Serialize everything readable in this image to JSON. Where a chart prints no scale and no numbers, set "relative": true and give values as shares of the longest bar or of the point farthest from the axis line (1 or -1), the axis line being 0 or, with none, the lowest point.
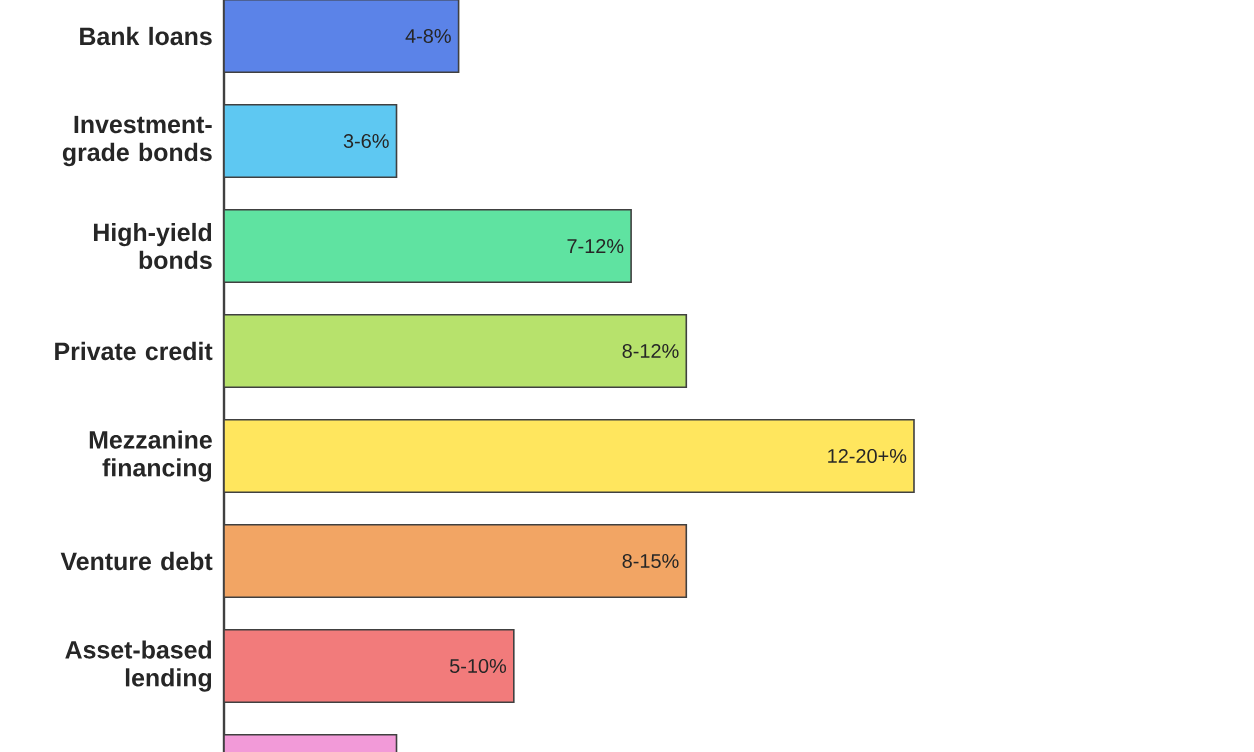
{
  "chart_data": {
    "type": "bar",
    "orientation": "horizontal",
    "relative": true,
    "categories": [
      "Bank loans",
      "Investment-grade bonds",
      "High-yield bonds",
      "Private credit",
      "Mezzanine financing",
      "Venture debt",
      "Asset-based lending",
      null
    ],
    "values": [
      0.34,
      0.25,
      0.59,
      0.67,
      1,
      0.67,
      0.42,
      0.25
    ],
    "annotations": [
      {
        "text": "4-8%",
        "x": 0.34,
        "y": "Bank loans"
      },
      {
        "text": "3-6%",
        "x": 0.25,
        "y": "Investment-grade bonds"
      },
      {
        "text": "7-12%",
        "x": 0.59,
        "y": "High-yield bonds"
      },
      {
        "text": "8-12%",
        "x": 0.67,
        "y": "Private credit"
      },
      {
        "text": "12-20+%",
        "x": 1,
        "y": "Mezzanine financing"
      },
      {
        "text": "8-15%",
        "x": 0.67,
        "y": "Venture debt"
      },
      {
        "text": "5-10%",
        "x": 0.42,
        "y": "Asset-based lending"
      }
    ],
    "colors": [
      "#5b83e8",
      "#5ec8f2",
      "#5fe3a1",
      "#b7e26c",
      "#ffe65e",
      "#f2a564",
      "#f27b7b",
      "#f29ad8"
    ]
  }
}
